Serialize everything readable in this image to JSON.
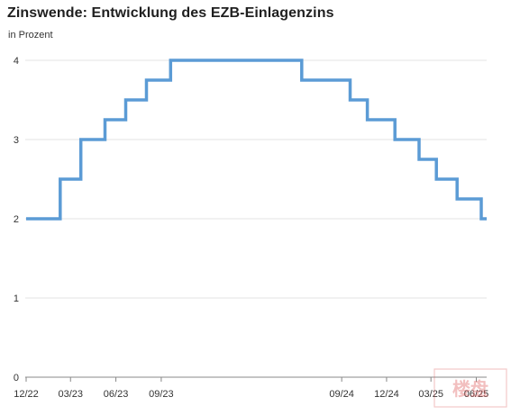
{
  "title": "Zinswende: Entwicklung des EZB-Einlagenzins",
  "subtitle": "in Prozent",
  "chart_data": {
    "type": "line",
    "step": true,
    "title": "Zinswende: Entwicklung des EZB-Einlagenzins",
    "subtitle": "in Prozent",
    "xlabel": "",
    "ylabel": "",
    "ylim": [
      0,
      4
    ],
    "yticks": [
      0,
      1,
      2,
      3,
      4
    ],
    "x_range": [
      "2022-12-01",
      "2025-06-22"
    ],
    "xticks": [
      {
        "date": "2022-12-01",
        "label": "12/22"
      },
      {
        "date": "2023-03-01",
        "label": "03/23"
      },
      {
        "date": "2023-06-01",
        "label": "06/23"
      },
      {
        "date": "2023-09-01",
        "label": "09/23"
      },
      {
        "date": "2024-09-01",
        "label": "09/24"
      },
      {
        "date": "2024-12-01",
        "label": "12/24"
      },
      {
        "date": "2025-03-01",
        "label": "03/25"
      },
      {
        "date": "2025-06-01",
        "label": "06/25"
      }
    ],
    "grid": true,
    "series": [
      {
        "color": "#5b9bd5",
        "points": [
          {
            "x": "2022-12-01",
            "y": 2.0
          },
          {
            "x": "2023-02-08",
            "y": 2.5
          },
          {
            "x": "2023-03-22",
            "y": 3.0
          },
          {
            "x": "2023-05-10",
            "y": 3.25
          },
          {
            "x": "2023-06-21",
            "y": 3.5
          },
          {
            "x": "2023-08-02",
            "y": 3.75
          },
          {
            "x": "2023-09-20",
            "y": 4.0
          },
          {
            "x": "2024-06-12",
            "y": 3.75
          },
          {
            "x": "2024-09-18",
            "y": 3.5
          },
          {
            "x": "2024-10-23",
            "y": 3.25
          },
          {
            "x": "2024-12-18",
            "y": 3.0
          },
          {
            "x": "2025-02-05",
            "y": 2.75
          },
          {
            "x": "2025-03-12",
            "y": 2.5
          },
          {
            "x": "2025-04-23",
            "y": 2.25
          },
          {
            "x": "2025-06-11",
            "y": 2.0
          },
          {
            "x": "2025-06-22",
            "y": 2.0
          }
        ]
      }
    ]
  },
  "colors": {
    "line": "#5b9bd5",
    "grid": "#e3e3e3",
    "axis": "#888888"
  },
  "watermark": {
    "text": "楼盘",
    "color": "#e06060"
  }
}
